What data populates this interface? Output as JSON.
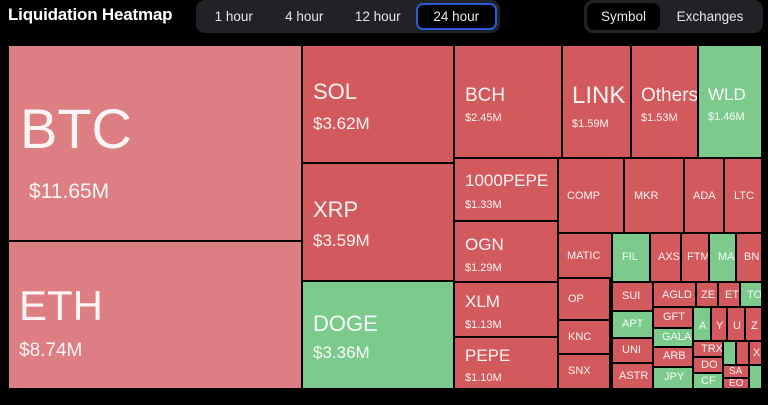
{
  "header": {
    "title": "Liquidation Heatmap"
  },
  "timeframes": {
    "options": [
      "1 hour",
      "4 hour",
      "12 hour",
      "24 hour"
    ],
    "selected": "24 hour"
  },
  "view_toggle": {
    "options": [
      "Symbol",
      "Exchanges"
    ],
    "selected": "Symbol"
  },
  "colors": {
    "loss": "#d2595c",
    "loss_light": "#dc7e82",
    "gain": "#7ccb8c",
    "selected_border": "#2a5bd7"
  },
  "tiles": [
    {
      "symbol": "BTC",
      "value": "$11.65M"
    },
    {
      "symbol": "ETH",
      "value": "$8.74M"
    },
    {
      "symbol": "SOL",
      "value": "$3.62M"
    },
    {
      "symbol": "XRP",
      "value": "$3.59M"
    },
    {
      "symbol": "DOGE",
      "value": "$3.36M"
    },
    {
      "symbol": "BCH",
      "value": "$2.45M"
    },
    {
      "symbol": "LINK",
      "value": "$1.59M"
    },
    {
      "symbol": "Others",
      "value": "$1.53M"
    },
    {
      "symbol": "WLD",
      "value": "$1.46M"
    },
    {
      "symbol": "1000PEPE",
      "value": "$1.33M"
    },
    {
      "symbol": "OGN",
      "value": "$1.29M"
    },
    {
      "symbol": "XLM",
      "value": "$1.13M"
    },
    {
      "symbol": "PEPE",
      "value": "$1.10M"
    },
    {
      "symbol": "COMP"
    },
    {
      "symbol": "MKR"
    },
    {
      "symbol": "ADA"
    },
    {
      "symbol": "LTC"
    },
    {
      "symbol": "MATIC"
    },
    {
      "symbol": "FIL"
    },
    {
      "symbol": "AXS"
    },
    {
      "symbol": "FTM"
    },
    {
      "symbol": "MA"
    },
    {
      "symbol": "BN"
    },
    {
      "symbol": "OP"
    },
    {
      "symbol": "SUI"
    },
    {
      "symbol": "AGLD"
    },
    {
      "symbol": "ZE"
    },
    {
      "symbol": "ET"
    },
    {
      "symbol": "TO"
    },
    {
      "symbol": "APT"
    },
    {
      "symbol": "GFT"
    },
    {
      "symbol": "KNC"
    },
    {
      "symbol": "GALA"
    },
    {
      "symbol": "A"
    },
    {
      "symbol": "Y"
    },
    {
      "symbol": "U"
    },
    {
      "symbol": "Z"
    },
    {
      "symbol": "UNI"
    },
    {
      "symbol": "ARB"
    },
    {
      "symbol": "TRX"
    },
    {
      "symbol": "SNX"
    },
    {
      "symbol": "DO"
    },
    {
      "symbol": "ASTR"
    },
    {
      "symbol": "JPY"
    },
    {
      "symbol": "CF"
    },
    {
      "symbol": "SA"
    },
    {
      "symbol": "EO"
    },
    {
      "symbol": "X"
    }
  ]
}
